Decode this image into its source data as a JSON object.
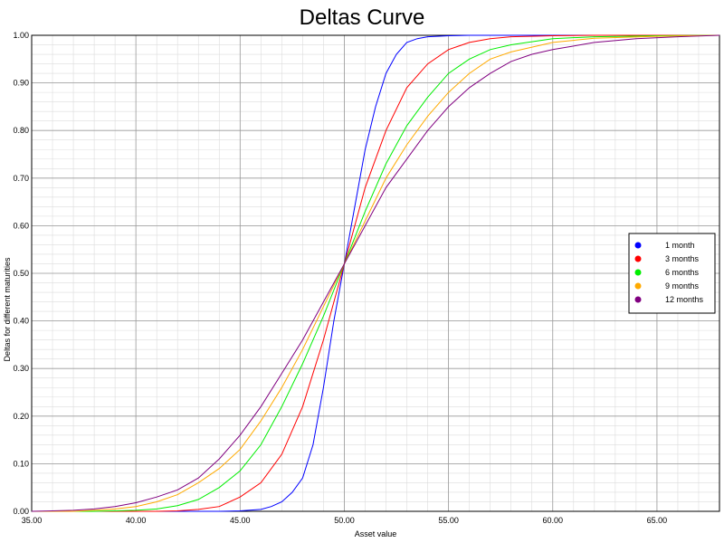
{
  "chart_data": {
    "type": "line",
    "title": "Deltas Curve",
    "xlabel": "Asset value",
    "ylabel": "Deltas for different maturities",
    "xlim": [
      35,
      68
    ],
    "ylim": [
      0,
      1
    ],
    "x_ticks": [
      35,
      40,
      45,
      50,
      55,
      60,
      65
    ],
    "x_tick_labels": [
      "35.00",
      "40.00",
      "45.00",
      "50.00",
      "55.00",
      "60.00",
      "65.00"
    ],
    "y_ticks": [
      0,
      0.1,
      0.2,
      0.3,
      0.4,
      0.5,
      0.6,
      0.7,
      0.8,
      0.9,
      1.0
    ],
    "y_tick_labels": [
      "0.00",
      "0.10",
      "0.20",
      "0.30",
      "0.40",
      "0.50",
      "0.60",
      "0.70",
      "0.80",
      "0.90",
      "1.00"
    ],
    "grid": true,
    "legend_position": "right",
    "series": [
      {
        "name": "1 month",
        "color": "#0000ff",
        "x": [
          35,
          44,
          45,
          46,
          46.5,
          47,
          47.5,
          48,
          48.5,
          49,
          49.5,
          50,
          50.5,
          51,
          51.5,
          52,
          52.5,
          53,
          53.5,
          54,
          55,
          56,
          58,
          68
        ],
        "y": [
          0,
          0,
          0.001,
          0.004,
          0.01,
          0.02,
          0.04,
          0.07,
          0.14,
          0.26,
          0.4,
          0.52,
          0.64,
          0.76,
          0.85,
          0.92,
          0.96,
          0.985,
          0.993,
          0.997,
          0.999,
          1,
          1,
          1
        ]
      },
      {
        "name": "3 months",
        "color": "#ff0000",
        "x": [
          35,
          41,
          42,
          43,
          44,
          45,
          46,
          47,
          48,
          49,
          50,
          51,
          52,
          53,
          54,
          55,
          56,
          57,
          58,
          60,
          62,
          65,
          68
        ],
        "y": [
          0,
          0,
          0.001,
          0.004,
          0.01,
          0.03,
          0.06,
          0.12,
          0.22,
          0.36,
          0.52,
          0.68,
          0.8,
          0.89,
          0.94,
          0.97,
          0.985,
          0.993,
          0.997,
          0.999,
          1,
          1,
          1
        ]
      },
      {
        "name": "6 months",
        "color": "#00ee00",
        "x": [
          35,
          38,
          40,
          41,
          42,
          43,
          44,
          45,
          46,
          47,
          48,
          49,
          50,
          51,
          52,
          53,
          54,
          55,
          56,
          57,
          58,
          60,
          62,
          65,
          68
        ],
        "y": [
          0,
          0,
          0.002,
          0.005,
          0.012,
          0.025,
          0.05,
          0.085,
          0.14,
          0.22,
          0.31,
          0.41,
          0.52,
          0.63,
          0.73,
          0.81,
          0.87,
          0.92,
          0.95,
          0.97,
          0.98,
          0.993,
          0.997,
          0.999,
          1
        ]
      },
      {
        "name": "9 months",
        "color": "#ffaa00",
        "x": [
          35,
          37,
          38,
          39,
          40,
          41,
          42,
          43,
          44,
          45,
          46,
          47,
          48,
          49,
          50,
          51,
          52,
          53,
          54,
          55,
          56,
          57,
          58,
          60,
          62,
          65,
          68
        ],
        "y": [
          0,
          0,
          0.002,
          0.005,
          0.01,
          0.02,
          0.035,
          0.06,
          0.09,
          0.13,
          0.19,
          0.26,
          0.34,
          0.43,
          0.52,
          0.61,
          0.7,
          0.77,
          0.83,
          0.88,
          0.92,
          0.95,
          0.965,
          0.985,
          0.994,
          0.998,
          1
        ]
      },
      {
        "name": "12 months",
        "color": "#800080",
        "x": [
          35,
          36,
          37,
          38,
          39,
          40,
          41,
          42,
          43,
          44,
          45,
          46,
          47,
          48,
          49,
          50,
          51,
          52,
          53,
          54,
          55,
          56,
          57,
          58,
          59,
          60,
          62,
          64,
          66,
          68
        ],
        "y": [
          0,
          0.001,
          0.002,
          0.005,
          0.01,
          0.018,
          0.03,
          0.045,
          0.07,
          0.11,
          0.16,
          0.22,
          0.29,
          0.36,
          0.44,
          0.52,
          0.6,
          0.68,
          0.74,
          0.8,
          0.85,
          0.89,
          0.92,
          0.945,
          0.96,
          0.97,
          0.985,
          0.993,
          0.997,
          1
        ]
      }
    ]
  }
}
